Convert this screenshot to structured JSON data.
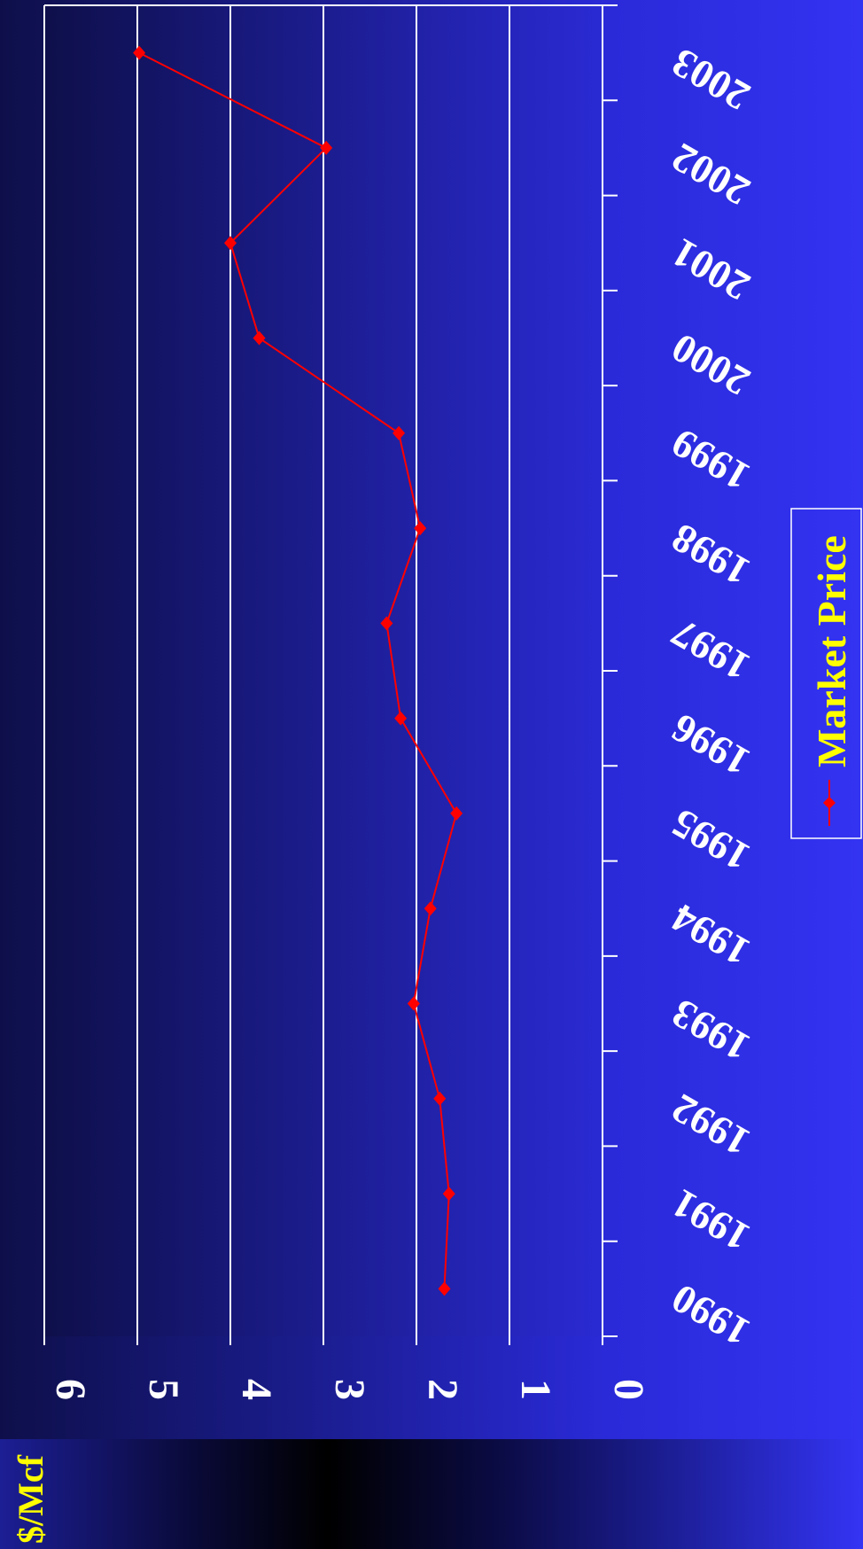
{
  "chart_data": {
    "type": "line",
    "xlabel": "",
    "ylabel": "$/Mcf",
    "x": [
      "1990",
      "1991",
      "1992",
      "1993",
      "1994",
      "1995",
      "1996",
      "1997",
      "1998",
      "1999",
      "2000",
      "2001",
      "2002",
      "2003"
    ],
    "series": [
      {
        "name": "Market Price",
        "values": [
          1.7,
          1.65,
          1.75,
          2.03,
          1.85,
          1.57,
          2.17,
          2.32,
          1.96,
          2.19,
          3.69,
          4.0,
          2.97,
          4.98
        ]
      }
    ],
    "ylim": [
      0,
      6
    ],
    "yticks": [
      "0",
      "1",
      "2",
      "3",
      "4",
      "5",
      "6"
    ],
    "grid": true,
    "legend": "bottom",
    "orientation": "rotated 90 degrees clockwise",
    "colors": {
      "series": "#ff0000",
      "tick_labels": "#ffffff",
      "ylabel": "#ffff00",
      "legend_text": "#ffff00",
      "grid": "#ffffff",
      "background_light": "#3333f2",
      "background_dark": "#0e0f4a"
    }
  }
}
